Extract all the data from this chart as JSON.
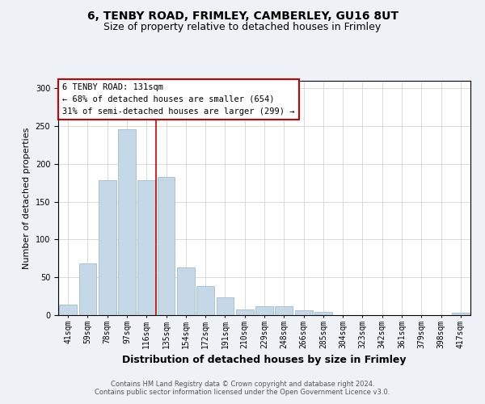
{
  "title1": "6, TENBY ROAD, FRIMLEY, CAMBERLEY, GU16 8UT",
  "title2": "Size of property relative to detached houses in Frimley",
  "xlabel": "Distribution of detached houses by size in Frimley",
  "ylabel": "Number of detached properties",
  "categories": [
    "41sqm",
    "59sqm",
    "78sqm",
    "97sqm",
    "116sqm",
    "135sqm",
    "154sqm",
    "172sqm",
    "191sqm",
    "210sqm",
    "229sqm",
    "248sqm",
    "266sqm",
    "285sqm",
    "304sqm",
    "323sqm",
    "342sqm",
    "361sqm",
    "379sqm",
    "398sqm",
    "417sqm"
  ],
  "values": [
    14,
    68,
    178,
    246,
    178,
    183,
    63,
    38,
    24,
    8,
    12,
    12,
    6,
    4,
    0,
    0,
    0,
    0,
    0,
    0,
    3
  ],
  "bar_color": "#c5d8e8",
  "bar_edge_color": "#a0bcd0",
  "vline_x": 4.5,
  "vline_color": "#cc0000",
  "annotation_lines": [
    "6 TENBY ROAD: 131sqm",
    "← 68% of detached houses are smaller (654)",
    "31% of semi-detached houses are larger (299) →"
  ],
  "ylim": [
    0,
    310
  ],
  "yticks": [
    0,
    50,
    100,
    150,
    200,
    250,
    300
  ],
  "footer_line1": "Contains HM Land Registry data © Crown copyright and database right 2024.",
  "footer_line2": "Contains public sector information licensed under the Open Government Licence v3.0.",
  "bg_color": "#eef2f7",
  "plot_bg_color": "#ffffff",
  "title_fontsize": 10,
  "subtitle_fontsize": 9,
  "tick_fontsize": 7,
  "ylabel_fontsize": 8,
  "xlabel_fontsize": 9,
  "footer_fontsize": 6,
  "ann_fontsize": 7.5
}
